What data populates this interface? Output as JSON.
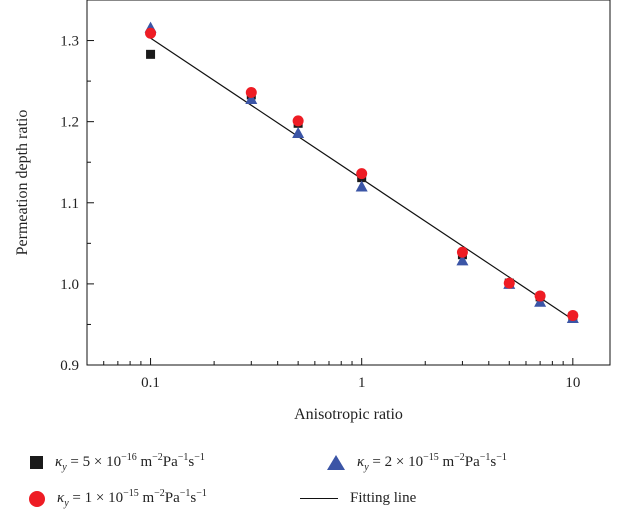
{
  "chart_data": {
    "type": "scatter",
    "x_scale": "log",
    "xlabel": "Anisotropic ratio",
    "ylabel": "Permeation depth ratio",
    "xlim": [
      0.05,
      15
    ],
    "ylim": [
      0.9,
      1.35
    ],
    "x_ticks": [
      0.1,
      1,
      10
    ],
    "x_tick_labels": [
      "0.1",
      "1",
      "10"
    ],
    "y_ticks": [
      0.9,
      1.0,
      1.1,
      1.2,
      1.3
    ],
    "y_tick_labels": [
      "0.9",
      "1.0",
      "1.1",
      "1.2",
      "1.3"
    ],
    "grid": false,
    "legend_position": "bottom",
    "series": [
      {
        "name": "κy = 5 × 10−16 m−2Pa−1s−1",
        "marker": "square",
        "color": "#1a1a1a",
        "x": [
          0.1,
          0.3,
          0.5,
          1,
          3,
          5,
          7,
          10
        ],
        "y": [
          1.283,
          1.233,
          1.198,
          1.131,
          1.036,
          1.001,
          0.984,
          0.96
        ]
      },
      {
        "name": "κy = 2 × 10−15 m−2Pa−1s−1",
        "marker": "triangle",
        "color": "#3b55a6",
        "x": [
          0.1,
          0.3,
          0.5,
          1,
          3,
          5,
          7,
          10
        ],
        "y": [
          1.316,
          1.228,
          1.186,
          1.12,
          1.029,
          1.0,
          0.978,
          0.958
        ]
      },
      {
        "name": "κy = 1 × 10−15 m−2Pa−1s−1",
        "marker": "circle",
        "color": "#ee1c24",
        "x": [
          0.1,
          0.3,
          0.5,
          1,
          3,
          5,
          7,
          10
        ],
        "y": [
          1.309,
          1.236,
          1.201,
          1.136,
          1.039,
          1.001,
          0.985,
          0.961
        ]
      }
    ],
    "fit_line": {
      "name": "Fitting line",
      "x": [
        0.1,
        10
      ],
      "y": [
        1.303,
        0.956
      ]
    }
  },
  "legend": {
    "items": [
      {
        "key": "s1",
        "kappa": "κ",
        "sub": "y",
        "text_a": " = 5 × 10",
        "exp1": "−16",
        "text_b": " m",
        "exp2": "−2",
        "text_c": "Pa",
        "exp3": "−1",
        "text_d": "s",
        "exp4": "−1"
      },
      {
        "key": "s2",
        "kappa": "κ",
        "sub": "y",
        "text_a": " = 2 × 10",
        "exp1": "−15",
        "text_b": " m",
        "exp2": "−2",
        "text_c": "Pa",
        "exp3": "−1",
        "text_d": "s",
        "exp4": "−1"
      },
      {
        "key": "s3",
        "kappa": "κ",
        "sub": "y",
        "text_a": " = 1 × 10",
        "exp1": "−15",
        "text_b": " m",
        "exp2": "−2",
        "text_c": "Pa",
        "exp3": "−1",
        "text_d": "s",
        "exp4": "−1"
      }
    ],
    "fit_label": "Fitting line"
  }
}
